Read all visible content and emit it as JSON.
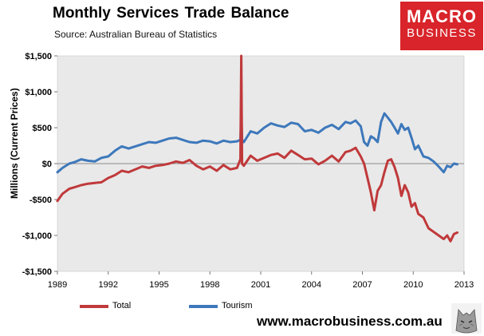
{
  "header": {
    "title": "Monthly  Services Trade  Balance",
    "source": "Source:  Australian Bureau of Statistics"
  },
  "logo": {
    "line1": "MACRO",
    "line2": "BUSINESS",
    "color": "#d8242a"
  },
  "footer": {
    "url": "www.macrobusiness.com.au",
    "logo_icon": "wolf-icon"
  },
  "chart_data": {
    "type": "line",
    "ylabel": "Millions (Current Prices)",
    "xlabel": "",
    "xlim": [
      1989,
      2013
    ],
    "ylim": [
      -1500,
      1500
    ],
    "grid": false,
    "background": "#e9e9e9",
    "legend_position": "bottom",
    "y_tick_labels": [
      "$1,500",
      "$1,000",
      "$500",
      "$0",
      "-$500",
      "-$1,000",
      "-$1,500"
    ],
    "y_tick_values": [
      1500,
      1000,
      500,
      0,
      -500,
      -1000,
      -1500
    ],
    "x_tick_labels": [
      "1989",
      "1992",
      "1995",
      "1998",
      "2001",
      "2004",
      "2007",
      "2010",
      "2013"
    ],
    "x_tick_values": [
      1989,
      1992,
      1995,
      1998,
      2001,
      2004,
      2007,
      2010,
      2013
    ],
    "series": [
      {
        "name": "Total",
        "color": "#c0393b",
        "x": [
          1989.0,
          1989.3,
          1989.7,
          1990.0,
          1990.4,
          1990.8,
          1991.2,
          1991.6,
          1992.0,
          1992.4,
          1992.8,
          1993.2,
          1993.6,
          1994.0,
          1994.4,
          1994.8,
          1995.2,
          1995.6,
          1996.0,
          1996.4,
          1996.8,
          1997.2,
          1997.6,
          1998.0,
          1998.4,
          1998.8,
          1999.2,
          1999.6,
          1999.8,
          1999.85,
          1999.9,
          2000.0,
          2000.4,
          2000.8,
          2001.2,
          2001.6,
          2002.0,
          2002.4,
          2002.8,
          2003.2,
          2003.6,
          2004.0,
          2004.4,
          2004.8,
          2005.2,
          2005.6,
          2006.0,
          2006.3,
          2006.6,
          2006.9,
          2007.1,
          2007.3,
          2007.5,
          2007.7,
          2007.9,
          2008.1,
          2008.3,
          2008.5,
          2008.7,
          2008.9,
          2009.1,
          2009.3,
          2009.5,
          2009.7,
          2009.9,
          2010.1,
          2010.3,
          2010.6,
          2010.9,
          2011.2,
          2011.5,
          2011.8,
          2012.0,
          2012.2,
          2012.4,
          2012.6
        ],
        "values": [
          -520,
          -420,
          -350,
          -330,
          -300,
          -280,
          -270,
          -260,
          -200,
          -160,
          -100,
          -120,
          -80,
          -40,
          -60,
          -30,
          -20,
          0,
          30,
          10,
          50,
          -30,
          -80,
          -40,
          -100,
          -20,
          -80,
          -60,
          60,
          1500,
          0,
          -30,
          110,
          40,
          80,
          120,
          140,
          80,
          180,
          120,
          60,
          70,
          -10,
          40,
          110,
          30,
          160,
          180,
          220,
          100,
          0,
          -200,
          -400,
          -650,
          -380,
          -300,
          -120,
          40,
          60,
          -50,
          -200,
          -450,
          -300,
          -400,
          -600,
          -550,
          -700,
          -750,
          -900,
          -950,
          -1000,
          -1050,
          -1000,
          -1080,
          -980,
          -960
        ]
      },
      {
        "name": "Tourism",
        "color": "#3d78bb",
        "x": [
          1989.0,
          1989.3,
          1989.7,
          1990.0,
          1990.4,
          1990.8,
          1991.2,
          1991.6,
          1992.0,
          1992.4,
          1992.8,
          1993.2,
          1993.6,
          1994.0,
          1994.4,
          1994.8,
          1995.2,
          1995.6,
          1996.0,
          1996.4,
          1996.8,
          1997.2,
          1997.6,
          1998.0,
          1998.4,
          1998.8,
          1999.2,
          1999.6,
          1999.8,
          1999.85,
          1999.9,
          2000.0,
          2000.4,
          2000.8,
          2001.2,
          2001.6,
          2002.0,
          2002.4,
          2002.8,
          2003.2,
          2003.6,
          2004.0,
          2004.4,
          2004.8,
          2005.2,
          2005.6,
          2006.0,
          2006.3,
          2006.6,
          2006.9,
          2007.1,
          2007.3,
          2007.5,
          2007.7,
          2007.9,
          2008.1,
          2008.3,
          2008.5,
          2008.7,
          2008.9,
          2009.1,
          2009.3,
          2009.5,
          2009.7,
          2009.9,
          2010.1,
          2010.3,
          2010.6,
          2010.9,
          2011.2,
          2011.5,
          2011.8,
          2012.0,
          2012.2,
          2012.4,
          2012.6
        ],
        "values": [
          -120,
          -60,
          0,
          20,
          60,
          40,
          30,
          80,
          100,
          180,
          240,
          210,
          240,
          270,
          300,
          290,
          320,
          350,
          360,
          330,
          300,
          290,
          320,
          310,
          280,
          320,
          300,
          310,
          330,
          680,
          330,
          300,
          450,
          420,
          500,
          560,
          530,
          510,
          570,
          550,
          450,
          470,
          430,
          500,
          540,
          480,
          580,
          560,
          600,
          520,
          300,
          250,
          380,
          350,
          300,
          580,
          700,
          640,
          580,
          500,
          420,
          550,
          470,
          500,
          360,
          200,
          250,
          100,
          80,
          30,
          -40,
          -120,
          -30,
          -50,
          0,
          -10
        ]
      }
    ]
  }
}
